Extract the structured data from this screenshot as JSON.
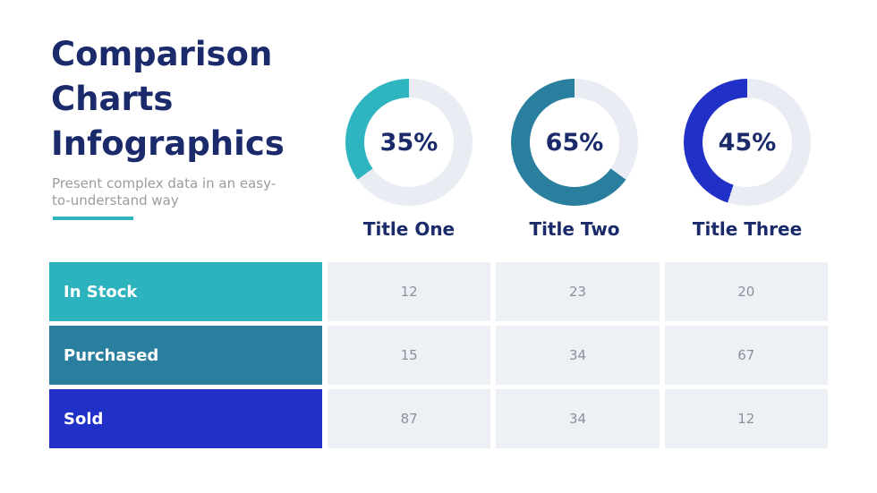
{
  "colors": {
    "navy": "#1a2a6a",
    "accent_teal": "#2eb5c0",
    "donut_track": "#e9edf3",
    "cell_bg": "#edf1f6",
    "cell_text": "#8b919b",
    "subtitle_gray": "#9b9b9b"
  },
  "header": {
    "title_lines": [
      "Comparison",
      "Charts",
      "Infographics"
    ],
    "subtitle_lines": [
      "Present complex data in an easy-",
      "to-understand way"
    ]
  },
  "donuts": [
    {
      "percent": 35,
      "percent_label": "35%",
      "label": "Title One",
      "color": "#2eb5c0"
    },
    {
      "percent": 65,
      "percent_label": "65%",
      "label": "Title Two",
      "color": "#2a7f9e"
    },
    {
      "percent": 45,
      "percent_label": "45%",
      "label": "Title Three",
      "color": "#2130c6"
    }
  ],
  "table": {
    "rows": [
      {
        "label": "In Stock",
        "color": "#2cb3bd",
        "values": [
          "12",
          "23",
          "20"
        ]
      },
      {
        "label": "Purchased",
        "color": "#2a7f9e",
        "values": [
          "15",
          "34",
          "67"
        ]
      },
      {
        "label": "Sold",
        "color": "#2130c6",
        "values": [
          "87",
          "34",
          "12"
        ]
      }
    ]
  },
  "chart_data": [
    {
      "type": "pie",
      "variant": "donut",
      "title": "Title One",
      "value": 35,
      "unit": "%",
      "center_label": "35%",
      "color": "#2eb5c0",
      "track_color": "#e9edf3",
      "start": "top",
      "direction": "counterclockwise"
    },
    {
      "type": "pie",
      "variant": "donut",
      "title": "Title Two",
      "value": 65,
      "unit": "%",
      "center_label": "65%",
      "color": "#2a7f9e",
      "track_color": "#e9edf3",
      "start": "top",
      "direction": "counterclockwise"
    },
    {
      "type": "pie",
      "variant": "donut",
      "title": "Title Three",
      "value": 45,
      "unit": "%",
      "center_label": "45%",
      "color": "#2130c6",
      "track_color": "#e9edf3",
      "start": "top",
      "direction": "counterclockwise"
    },
    {
      "type": "table",
      "columns": [
        "Title One",
        "Title Two",
        "Title Three"
      ],
      "row_headers": [
        "In Stock",
        "Purchased",
        "Sold"
      ],
      "rows": [
        [
          12,
          23,
          20
        ],
        [
          15,
          34,
          67
        ],
        [
          87,
          34,
          12
        ]
      ]
    }
  ]
}
